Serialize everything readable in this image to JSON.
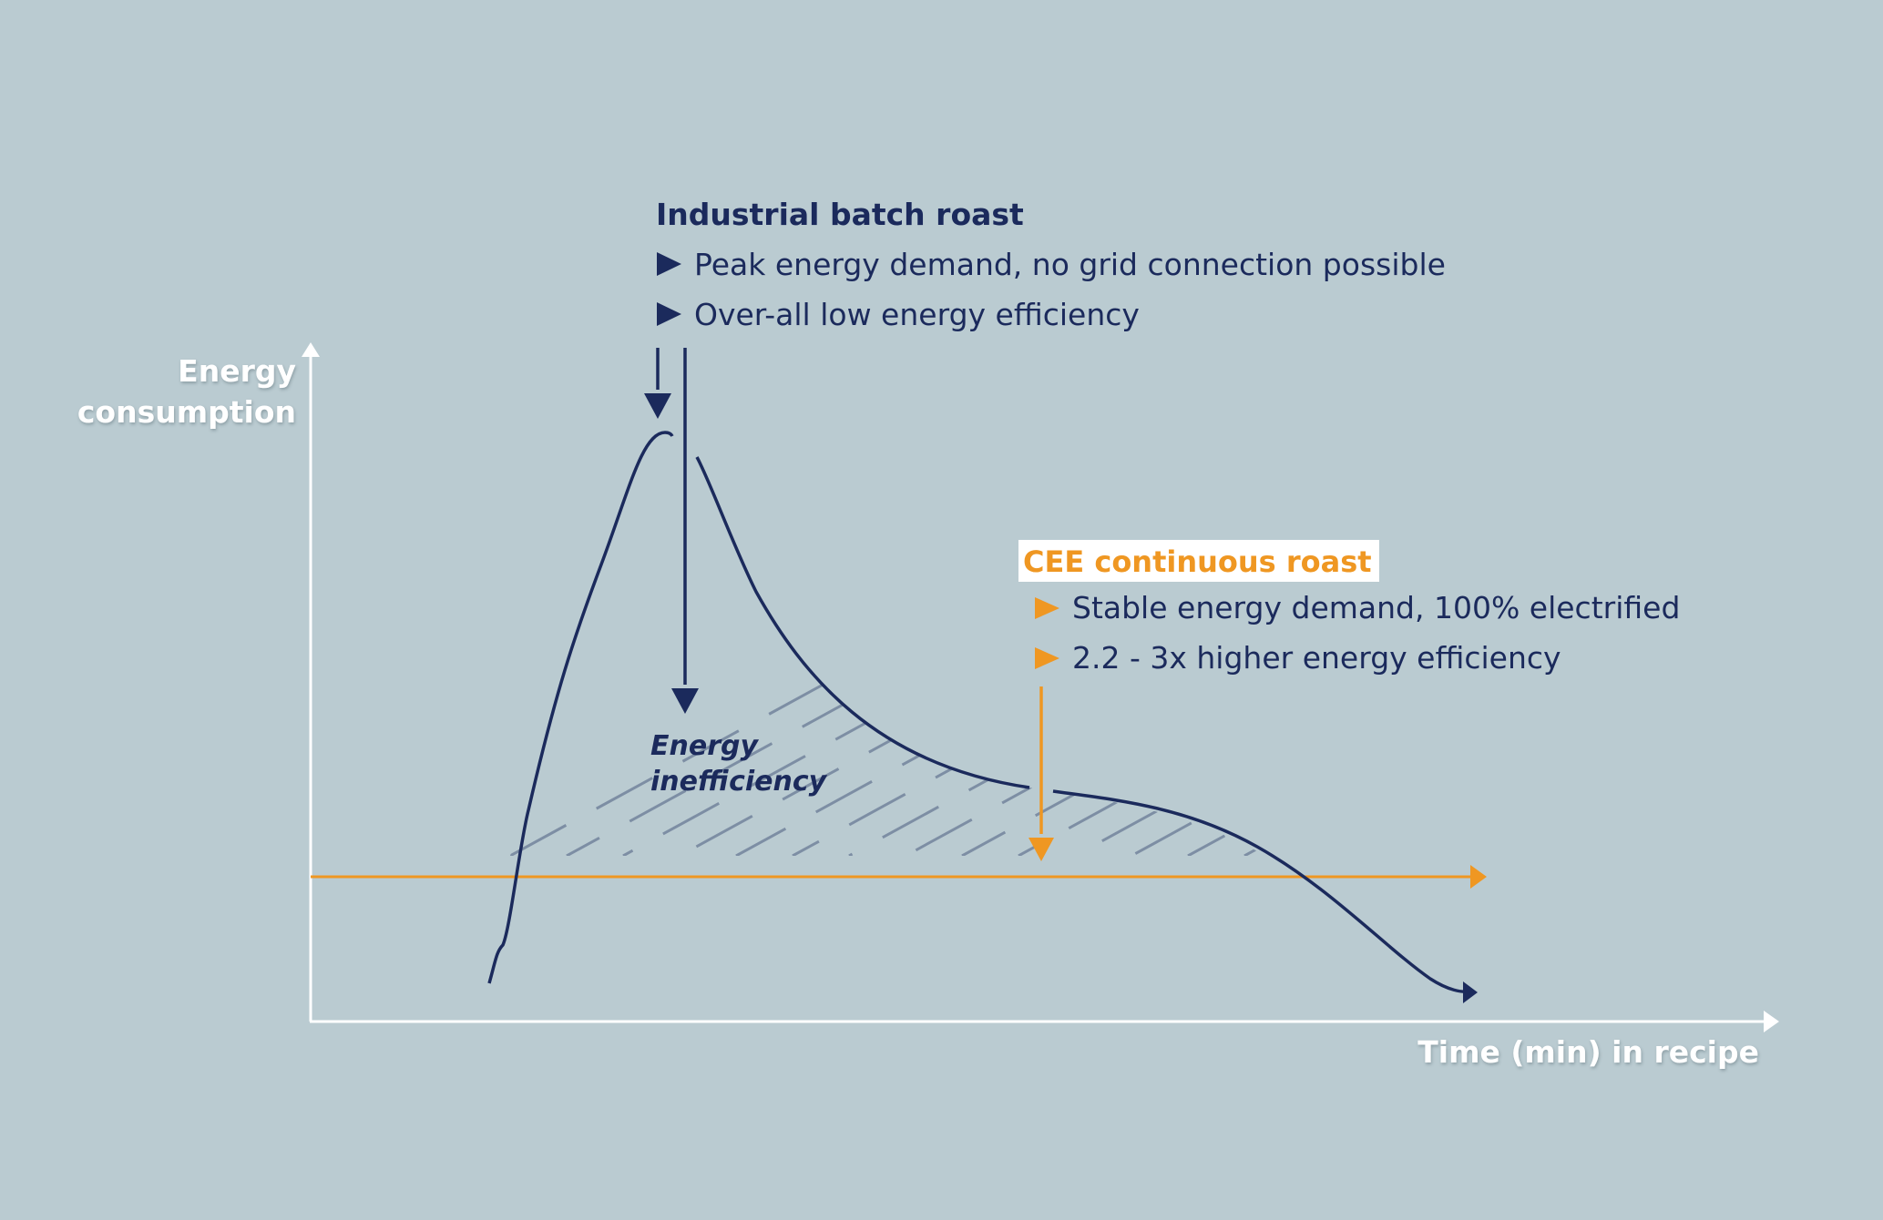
{
  "colors": {
    "background": "#bacbd1",
    "axis": "#ffffff",
    "batch_curve": "#1b2a5c",
    "continuous_line": "#ef9722",
    "hatch": "#7d8ea4",
    "cee_label_bg": "#ffffff"
  },
  "axes": {
    "y_label_line1": "Energy",
    "y_label_line2": "consumption",
    "x_label": "Time (min) in recipe"
  },
  "batch": {
    "title": "Industrial batch roast",
    "bullets": [
      "Peak energy demand, no grid connection possible",
      "Over-all low energy efficiency"
    ],
    "bullet_icon": "triangle-right-icon"
  },
  "inefficiency": {
    "line1": "Energy",
    "line2": "inefficiency"
  },
  "cee": {
    "title": "CEE continuous roast",
    "bullets": [
      "Stable energy demand, 100% electrified",
      "2.2 - 3x higher energy efficiency"
    ],
    "bullet_icon": "triangle-right-icon"
  }
}
